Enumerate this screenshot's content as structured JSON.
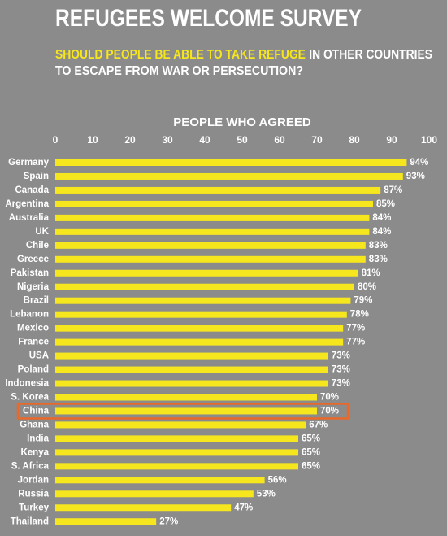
{
  "chart_data": {
    "type": "bar",
    "orientation": "horizontal",
    "title": "REFUGEES WELCOME SURVEY",
    "subtitle": [
      "SHOULD PEOPLE BE ABLE TO TAKE REFUGE",
      "IN OTHER COUNTRIES",
      "TO ESCAPE FROM WAR OR PERSECUTION?"
    ],
    "subtitle_highlight_color": "#f6e61e",
    "x_label": "PEOPLE WHO AGREED",
    "categories": [
      "Germany",
      "Spain",
      "Canada",
      "Argentina",
      "Australia",
      "UK",
      "Chile",
      "Greece",
      "Pakistan",
      "Nigeria",
      "Brazil",
      "Lebanon",
      "Mexico",
      "France",
      "USA",
      "Poland",
      "Indonesia",
      "S. Korea",
      "China",
      "Ghana",
      "India",
      "Kenya",
      "S. Africa",
      "Jordan",
      "Russia",
      "Turkey",
      "Thailand"
    ],
    "values": [
      94,
      93,
      87,
      85,
      84,
      84,
      83,
      83,
      81,
      80,
      79,
      78,
      77,
      77,
      73,
      73,
      73,
      70,
      70,
      67,
      65,
      65,
      65,
      56,
      53,
      47,
      27
    ],
    "value_labels": [
      "94%",
      "93%",
      "87%",
      "85%",
      "84%",
      "84%",
      "83%",
      "83%",
      "81%",
      "80%",
      "79%",
      "78%",
      "77%",
      "77%",
      "73%",
      "73%",
      "73%",
      "70%",
      "70%",
      "67%",
      "65%",
      "65%",
      "65%",
      "56%",
      "53%",
      "47%",
      "27%"
    ],
    "color": "#f6e61e",
    "highlight": "China",
    "highlight_color": "#e8692a",
    "xlim": [
      0,
      100
    ],
    "xticks": [
      0,
      10,
      20,
      30,
      40,
      50,
      60,
      70,
      80,
      90,
      100
    ],
    "grid": false
  }
}
